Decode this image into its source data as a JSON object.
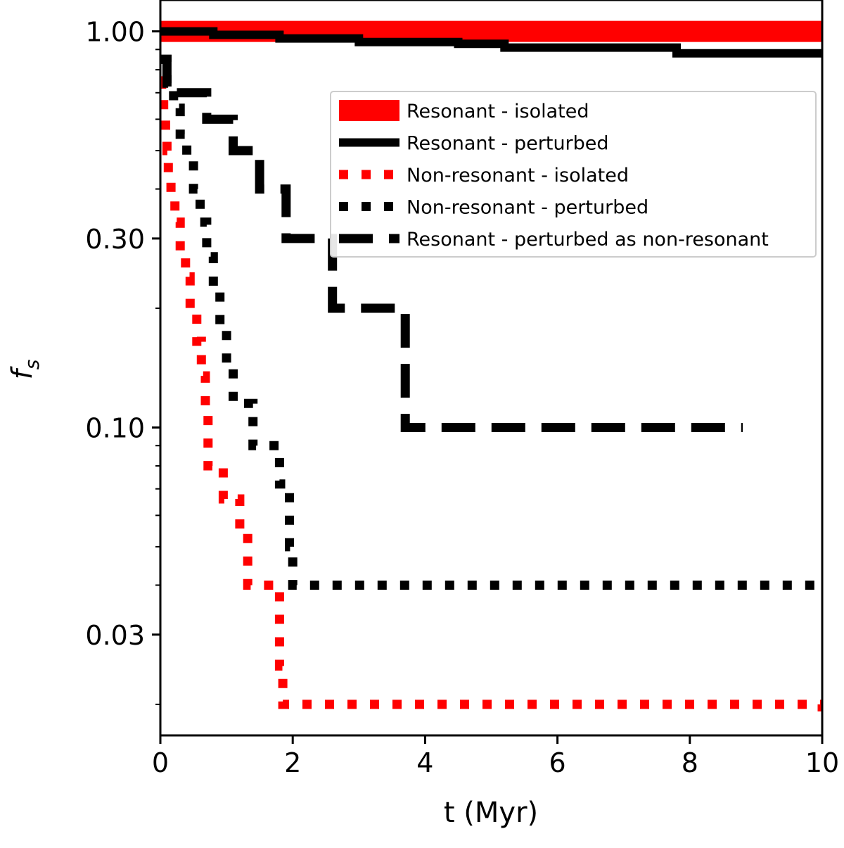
{
  "chart_data": {
    "type": "line",
    "title": "",
    "xlabel": "t (Myr)",
    "ylabel": "f_s",
    "ylabel_main": "f",
    "ylabel_sub": "s",
    "xlim": [
      0,
      10
    ],
    "ylim": [
      0.0167,
      1.2
    ],
    "yscale": "log",
    "xticks": [
      {
        "value": 0,
        "label": "0"
      },
      {
        "value": 2,
        "label": "2"
      },
      {
        "value": 4,
        "label": "4"
      },
      {
        "value": 6,
        "label": "6"
      },
      {
        "value": 8,
        "label": "8"
      },
      {
        "value": 10,
        "label": "10"
      }
    ],
    "yticks": [
      {
        "value": 1.0,
        "label": "1.00"
      },
      {
        "value": 0.3,
        "label": "0.30"
      },
      {
        "value": 0.1,
        "label": "0.10"
      },
      {
        "value": 0.03,
        "label": "0.03"
      }
    ],
    "minor_yticks": [
      0.9,
      0.8,
      0.7,
      0.6,
      0.5,
      0.4,
      0.2,
      0.09,
      0.08,
      0.07,
      0.06,
      0.05,
      0.04,
      0.02
    ],
    "legend_position": "upper-right",
    "series": [
      {
        "name": "Resonant - isolated",
        "color": "#ff0000",
        "style": "thick-solid",
        "x": [
          0,
          10
        ],
        "y": [
          1.0,
          1.0
        ]
      },
      {
        "name": "Resonant - perturbed",
        "color": "#000000",
        "style": "solid",
        "x": [
          0,
          0.8,
          0.8,
          1.8,
          1.8,
          3.0,
          3.0,
          4.5,
          4.5,
          5.2,
          5.2,
          7.8,
          7.8,
          10
        ],
        "y": [
          1.0,
          1.0,
          0.98,
          0.98,
          0.96,
          0.96,
          0.94,
          0.94,
          0.93,
          0.93,
          0.91,
          0.91,
          0.88,
          0.88
        ]
      },
      {
        "name": "Non-resonant - isolated",
        "color": "#ff0000",
        "style": "dotted",
        "x": [
          0,
          0.02,
          0.02,
          0.05,
          0.05,
          0.08,
          0.08,
          0.1,
          0.1,
          0.12,
          0.12,
          0.16,
          0.16,
          0.22,
          0.22,
          0.3,
          0.3,
          0.38,
          0.38,
          0.45,
          0.45,
          0.55,
          0.55,
          0.62,
          0.62,
          0.68,
          0.68,
          0.72,
          0.72,
          0.95,
          0.95,
          1.2,
          1.2,
          1.32,
          1.32,
          1.8,
          1.8,
          1.85,
          1.85,
          10,
          10
        ],
        "y": [
          0.75,
          0.75,
          0.68,
          0.68,
          0.62,
          0.62,
          0.56,
          0.56,
          0.5,
          0.5,
          0.44,
          0.44,
          0.38,
          0.38,
          0.33,
          0.33,
          0.28,
          0.28,
          0.24,
          0.24,
          0.2,
          0.2,
          0.165,
          0.165,
          0.135,
          0.135,
          0.11,
          0.11,
          0.08,
          0.08,
          0.066,
          0.066,
          0.055,
          0.055,
          0.04,
          0.04,
          0.025,
          0.025,
          0.02,
          0.02,
          0.018
        ]
      },
      {
        "name": "Non-resonant - perturbed",
        "color": "#000000",
        "style": "dotted",
        "x": [
          0,
          0.1,
          0.1,
          0.2,
          0.2,
          0.3,
          0.3,
          0.4,
          0.4,
          0.5,
          0.5,
          0.6,
          0.6,
          0.7,
          0.7,
          0.8,
          0.8,
          0.9,
          0.9,
          1.0,
          1.0,
          1.1,
          1.1,
          1.4,
          1.4,
          1.8,
          1.8,
          1.95,
          1.95,
          2.0,
          2.0,
          10
        ],
        "y": [
          0.85,
          0.85,
          0.74,
          0.74,
          0.64,
          0.64,
          0.55,
          0.55,
          0.47,
          0.47,
          0.4,
          0.4,
          0.33,
          0.33,
          0.27,
          0.27,
          0.22,
          0.22,
          0.18,
          0.18,
          0.145,
          0.145,
          0.115,
          0.115,
          0.09,
          0.09,
          0.072,
          0.072,
          0.05,
          0.05,
          0.04,
          0.04
        ]
      },
      {
        "name": "Resonant - perturbed as non-resonant",
        "color": "#000000",
        "style": "dashed",
        "x": [
          0,
          0.1,
          0.1,
          0.7,
          0.7,
          1.1,
          1.1,
          1.5,
          1.5,
          1.9,
          1.9,
          2.6,
          2.6,
          3.7,
          3.7,
          8.8
        ],
        "y": [
          0.85,
          0.85,
          0.7,
          0.7,
          0.6,
          0.6,
          0.5,
          0.5,
          0.4,
          0.4,
          0.3,
          0.3,
          0.2,
          0.2,
          0.1,
          0.1
        ]
      }
    ]
  }
}
